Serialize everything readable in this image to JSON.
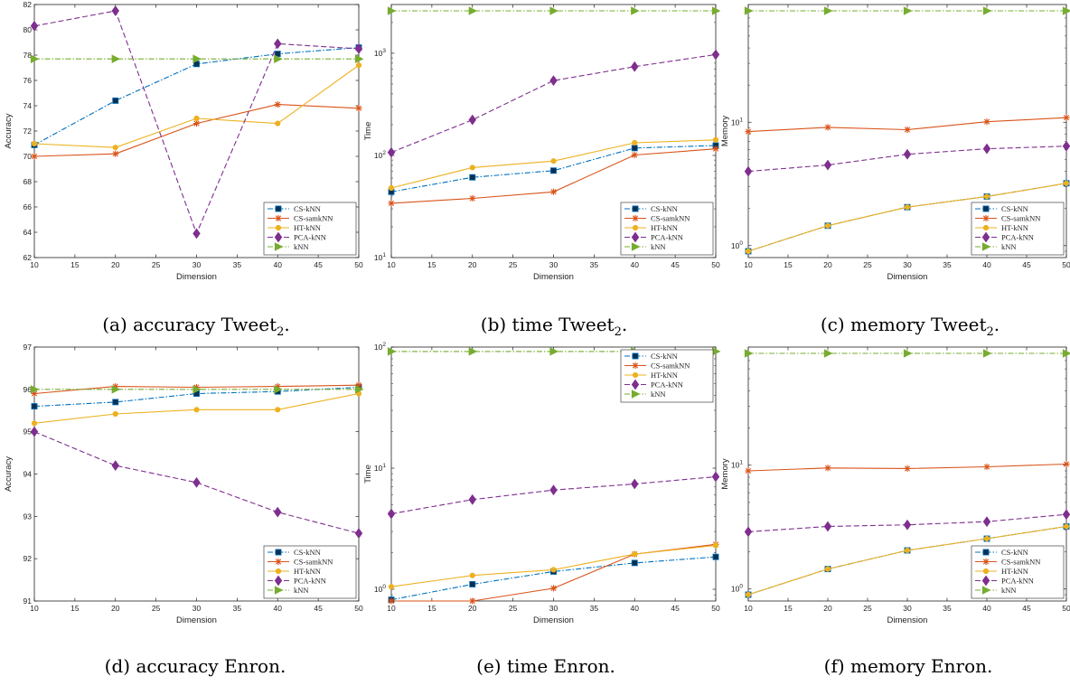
{
  "colors": {
    "CS-kNN": "#0072BD",
    "CS-samkNN": "#D95319",
    "HT-kNN": "#EDB120",
    "PCA-kNN": "#7E2F8E",
    "kNN": "#77AC30"
  },
  "captions": [
    {
      "prefix": "(a) accuracy Tweet",
      "sub": "2",
      "suffix": "."
    },
    {
      "prefix": "(b) time Tweet",
      "sub": "2",
      "suffix": "."
    },
    {
      "prefix": "(c) memory Tweet",
      "sub": "2",
      "suffix": "."
    },
    {
      "prefix": "(d) accuracy Enron.",
      "sub": "",
      "suffix": ""
    },
    {
      "prefix": "(e) time Enron.",
      "sub": "",
      "suffix": ""
    },
    {
      "prefix": "(f) memory Enron.",
      "sub": "",
      "suffix": ""
    }
  ],
  "chart_data": [
    {
      "type": "line",
      "xlabel": "Dimension",
      "ylabel": "Accuracy",
      "xlim": [
        10,
        50
      ],
      "ylim": [
        62,
        82
      ],
      "yscale": "linear",
      "yticks": [
        62,
        64,
        66,
        68,
        70,
        72,
        74,
        76,
        78,
        80,
        82
      ],
      "xticks": [
        10,
        15,
        20,
        25,
        30,
        35,
        40,
        45,
        50
      ],
      "legend": "bottom-right",
      "x": [
        10,
        20,
        30,
        40,
        50
      ],
      "series": [
        {
          "name": "CS-kNN",
          "values": [
            70.9,
            74.4,
            77.3,
            78.1,
            78.6
          ]
        },
        {
          "name": "CS-samkNN",
          "values": [
            70.0,
            70.2,
            72.6,
            74.1,
            73.8
          ]
        },
        {
          "name": "HT-kNN",
          "values": [
            71.0,
            70.7,
            73.0,
            72.6,
            77.2
          ]
        },
        {
          "name": "PCA-kNN",
          "values": [
            80.3,
            81.5,
            63.9,
            78.9,
            78.5
          ]
        },
        {
          "name": "kNN",
          "values": [
            77.7,
            77.7,
            77.7,
            77.7,
            77.7
          ]
        }
      ]
    },
    {
      "type": "line",
      "xlabel": "Dimension",
      "ylabel": "Time",
      "xlim": [
        10,
        50
      ],
      "ylim": [
        10,
        3000
      ],
      "yscale": "log",
      "yticks": [
        10,
        100,
        1000
      ],
      "xticks": [
        10,
        15,
        20,
        25,
        30,
        35,
        40,
        45,
        50
      ],
      "legend": "bottom-right",
      "x": [
        10,
        20,
        30,
        40,
        50
      ],
      "series": [
        {
          "name": "CS-kNN",
          "values": [
            44,
            61,
            71,
            118,
            125
          ]
        },
        {
          "name": "CS-samkNN",
          "values": [
            34,
            38,
            44,
            101,
            116
          ]
        },
        {
          "name": "HT-kNN",
          "values": [
            48,
            76,
            88,
            133,
            142
          ]
        },
        {
          "name": "PCA-kNN",
          "values": [
            107,
            223,
            540,
            740,
            970
          ]
        },
        {
          "name": "kNN",
          "values": [
            2600,
            2600,
            2600,
            2600,
            2600
          ]
        }
      ]
    },
    {
      "type": "line",
      "xlabel": "Dimension",
      "ylabel": "Memory",
      "xlim": [
        10,
        50
      ],
      "ylim": [
        0.8,
        90
      ],
      "yscale": "log",
      "yticks": [
        1,
        10
      ],
      "xticks": [
        10,
        15,
        20,
        25,
        30,
        35,
        40,
        45,
        50
      ],
      "legend": "bottom-right",
      "x": [
        10,
        20,
        30,
        40,
        50
      ],
      "series": [
        {
          "name": "CS-kNN",
          "values": [
            0.9,
            1.45,
            2.05,
            2.5,
            3.2
          ]
        },
        {
          "name": "CS-samkNN",
          "values": [
            8.4,
            9.1,
            8.7,
            10.1,
            10.9
          ]
        },
        {
          "name": "HT-kNN",
          "values": [
            0.9,
            1.45,
            2.05,
            2.5,
            3.2
          ]
        },
        {
          "name": "PCA-kNN",
          "values": [
            4.0,
            4.5,
            5.5,
            6.1,
            6.4
          ]
        },
        {
          "name": "kNN",
          "values": [
            80,
            80,
            80,
            80,
            80
          ]
        }
      ]
    },
    {
      "type": "line",
      "xlabel": "Dimension",
      "ylabel": "Accuracy",
      "xlim": [
        10,
        50
      ],
      "ylim": [
        91,
        97
      ],
      "yscale": "linear",
      "yticks": [
        91,
        92,
        93,
        94,
        95,
        96,
        97
      ],
      "xticks": [
        10,
        15,
        20,
        25,
        30,
        35,
        40,
        45,
        50
      ],
      "legend": "bottom-right",
      "x": [
        10,
        20,
        30,
        40,
        50
      ],
      "series": [
        {
          "name": "CS-kNN",
          "values": [
            95.6,
            95.7,
            95.9,
            95.95,
            96.05
          ]
        },
        {
          "name": "CS-samkNN",
          "values": [
            95.9,
            96.07,
            96.05,
            96.07,
            96.1
          ]
        },
        {
          "name": "HT-kNN",
          "values": [
            95.2,
            95.42,
            95.52,
            95.52,
            95.9
          ]
        },
        {
          "name": "PCA-kNN",
          "values": [
            95.0,
            94.2,
            93.8,
            93.1,
            92.6
          ]
        },
        {
          "name": "kNN",
          "values": [
            96.0,
            96.0,
            96.0,
            96.0,
            96.0
          ]
        }
      ]
    },
    {
      "type": "line",
      "xlabel": "Dimension",
      "ylabel": "Time",
      "xlim": [
        10,
        50
      ],
      "ylim": [
        0.8,
        100
      ],
      "yscale": "log",
      "yticks": [
        1,
        10,
        100
      ],
      "xticks": [
        10,
        15,
        20,
        25,
        30,
        35,
        40,
        45,
        50
      ],
      "legend": "top-right",
      "x": [
        10,
        20,
        30,
        40,
        50
      ],
      "series": [
        {
          "name": "CS-kNN",
          "values": [
            0.82,
            1.1,
            1.4,
            1.65,
            1.85
          ]
        },
        {
          "name": "CS-samkNN",
          "values": [
            0.8,
            0.8,
            1.02,
            1.95,
            2.35
          ]
        },
        {
          "name": "HT-kNN",
          "values": [
            1.05,
            1.3,
            1.45,
            1.95,
            2.3
          ]
        },
        {
          "name": "PCA-kNN",
          "values": [
            4.2,
            5.5,
            6.6,
            7.4,
            8.5
          ]
        },
        {
          "name": "kNN",
          "values": [
            92,
            92,
            92,
            92,
            92
          ]
        }
      ]
    },
    {
      "type": "line",
      "xlabel": "Dimension",
      "ylabel": "Memory",
      "xlim": [
        10,
        50
      ],
      "ylim": [
        0.8,
        90
      ],
      "yscale": "log",
      "yticks": [
        1,
        10
      ],
      "xticks": [
        10,
        15,
        20,
        25,
        30,
        35,
        40,
        45,
        50
      ],
      "legend": "bottom-right",
      "x": [
        10,
        20,
        30,
        40,
        50
      ],
      "series": [
        {
          "name": "CS-kNN",
          "values": [
            0.9,
            1.45,
            2.05,
            2.55,
            3.2
          ]
        },
        {
          "name": "CS-samkNN",
          "values": [
            9.0,
            9.5,
            9.4,
            9.7,
            10.2
          ]
        },
        {
          "name": "HT-kNN",
          "values": [
            0.9,
            1.45,
            2.05,
            2.55,
            3.2
          ]
        },
        {
          "name": "PCA-kNN",
          "values": [
            2.9,
            3.2,
            3.3,
            3.5,
            4.0
          ]
        },
        {
          "name": "kNN",
          "values": [
            80,
            80,
            80,
            80,
            80
          ]
        }
      ]
    }
  ]
}
